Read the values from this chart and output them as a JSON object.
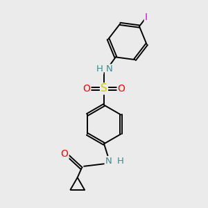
{
  "background_color": "#ebebeb",
  "bond_color": "#000000",
  "atom_colors": {
    "N": "#3d8a8a",
    "O": "#ff0000",
    "S": "#cccc00",
    "I": "#cc00cc",
    "H": "#3d8a8a",
    "C": "#000000"
  },
  "fig_width": 3.0,
  "fig_height": 3.0,
  "dpi": 100
}
